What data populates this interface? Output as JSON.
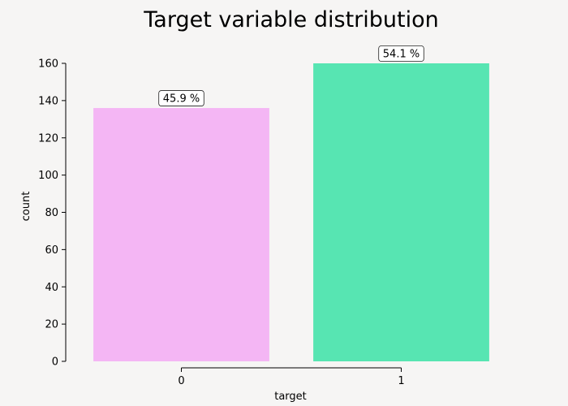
{
  "chart_data": {
    "type": "bar",
    "title": "Target variable distribution",
    "xlabel": "target",
    "ylabel": "count",
    "categories": [
      "0",
      "1"
    ],
    "values": [
      136,
      160
    ],
    "data_labels": [
      "45.9 %",
      "54.1 %"
    ],
    "colors": [
      "#f4b6f4",
      "#57e5b2"
    ],
    "ylim": [
      0,
      160
    ],
    "yticks": [
      0,
      20,
      40,
      60,
      80,
      100,
      120,
      140,
      160
    ],
    "grid": false,
    "legend": "none"
  }
}
